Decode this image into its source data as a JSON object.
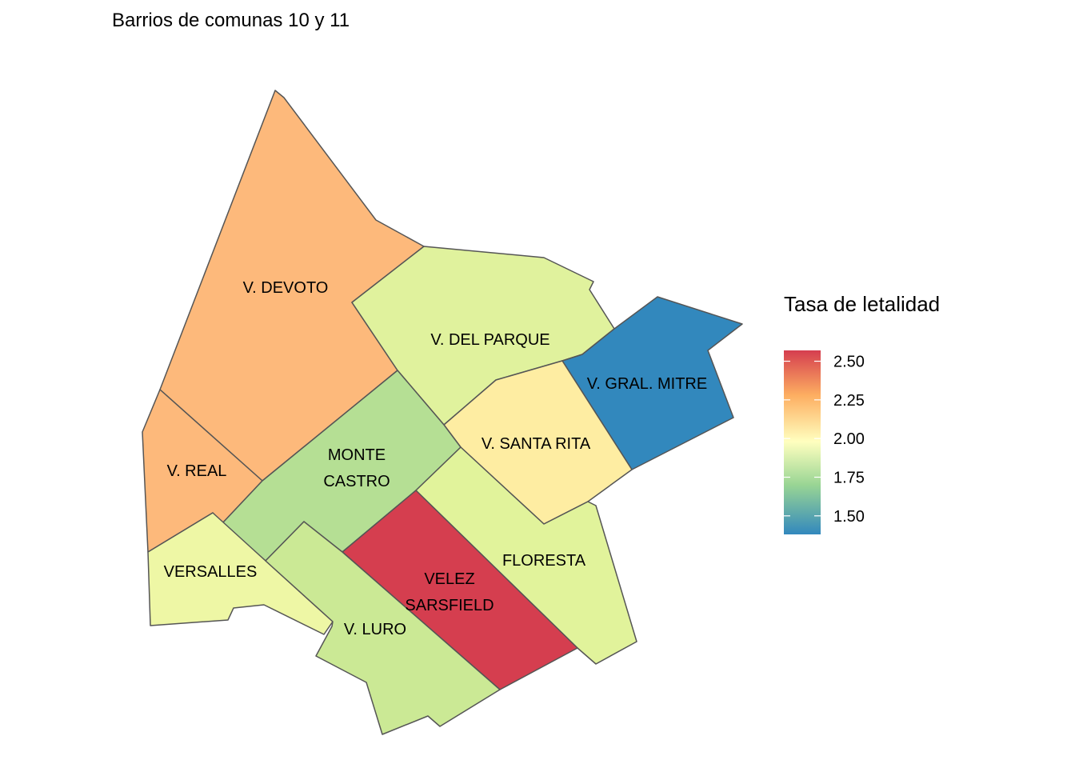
{
  "title": "Barrios de comunas 10 y 11",
  "legend": {
    "title": "Tasa de letalidad",
    "ticks": [
      "2.50",
      "2.25",
      "2.00",
      "1.75",
      "1.50"
    ],
    "tick_values": [
      2.5,
      2.25,
      2.0,
      1.75,
      1.5
    ],
    "range": [
      1.38,
      2.57
    ],
    "palette": [
      "#3288bd",
      "#99d594",
      "#ffffbf",
      "#fdae61",
      "#d53e4f"
    ],
    "palette_stops": [
      1.38,
      1.7,
      1.98,
      2.28,
      2.57
    ]
  },
  "districts": [
    {
      "id": "devoto",
      "label": "V. DEVOTO",
      "color": "#fdb97b"
    },
    {
      "id": "real",
      "label": "V. REAL",
      "color": "#fdb97b"
    },
    {
      "id": "monte-castro",
      "label": "MONTE CASTRO",
      "label_lines": [
        "MONTE",
        "CASTRO"
      ],
      "color": "#b5df94"
    },
    {
      "id": "versalles",
      "label": "VERSALLES",
      "color": "#eef7a5"
    },
    {
      "id": "luro",
      "label": "V. LURO",
      "color": "#cbe995"
    },
    {
      "id": "velez",
      "label": "VELEZ SARSFIELD",
      "label_lines": [
        "VELEZ",
        "SARSFIELD"
      ],
      "color": "#d53e4f"
    },
    {
      "id": "floresta",
      "label": "FLORESTA",
      "color": "#e1f39b"
    },
    {
      "id": "del-parque",
      "label": "V. DEL PARQUE",
      "color": "#e0f29d"
    },
    {
      "id": "santa-rita",
      "label": "V. SANTA RITA",
      "color": "#feeda2"
    },
    {
      "id": "gral-mitre",
      "label": "V. GRAL. MITRE",
      "color": "#3288bd"
    }
  ]
}
